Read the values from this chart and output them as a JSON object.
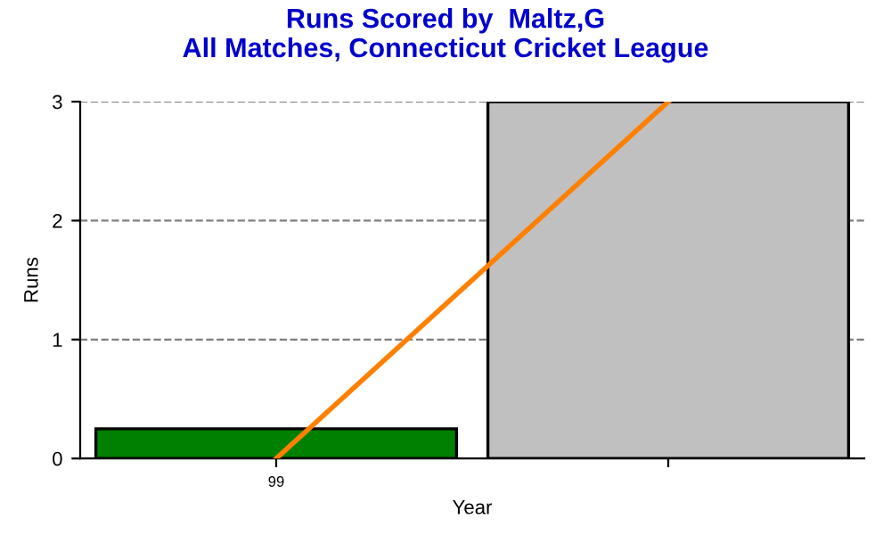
{
  "chart_data": {
    "type": "bar",
    "title": "Runs Scored by  Maltz,G\nAll Matches, Connecticut Cricket League",
    "xlabel": "Year",
    "ylabel": "Runs",
    "categories": [
      "99",
      null
    ],
    "series": [
      {
        "colors": [
          "#008000",
          "#c0c0c0"
        ],
        "values": [
          0.25,
          3
        ]
      },
      {
        "type": "line",
        "color": "#ff8000",
        "values": [
          0,
          3
        ]
      }
    ],
    "ylim": [
      0,
      3
    ],
    "yticks": [
      0,
      1,
      2,
      3
    ],
    "grid": "y"
  }
}
